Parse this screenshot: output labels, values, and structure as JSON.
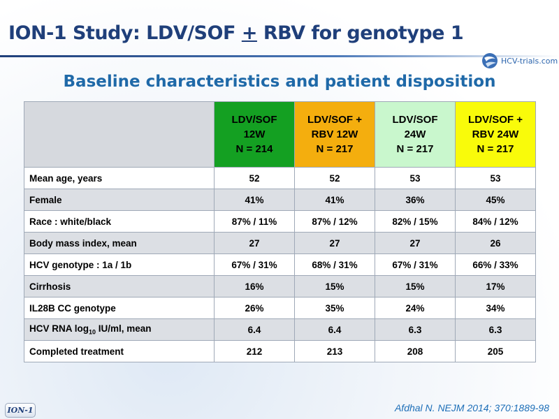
{
  "slide": {
    "title_prefix": "ION-1 Study: LDV/SOF ",
    "title_pm": "+",
    "title_suffix": " RBV for genotype 1",
    "subtitle": "Baseline characteristics and patient disposition",
    "logo_text": "HCV-trials.com",
    "badge": "ION-1",
    "citation": "Afdhal N. NEJM 2014; 370:1889-98"
  },
  "colors": {
    "title": "#1f3f7a",
    "subtitle": "#1f69a8",
    "arm_1": "#14a022",
    "arm_2": "#f4ae0e",
    "arm_3": "#c9f7cd",
    "arm_4": "#f9fb0a"
  },
  "table": {
    "columns": [
      {
        "line1": "LDV/SOF",
        "line2": "12W",
        "line3": "N = 214"
      },
      {
        "line1": "LDV/SOF +",
        "line2": "RBV 12W",
        "line3": "N = 217"
      },
      {
        "line1": "LDV/SOF",
        "line2": "24W",
        "line3": "N = 217"
      },
      {
        "line1": "LDV/SOF +",
        "line2": "RBV 24W",
        "line3": "N = 217"
      }
    ],
    "rows": [
      {
        "label": "Mean age, years",
        "values": [
          "52",
          "52",
          "53",
          "53"
        ]
      },
      {
        "label": "Female",
        "values": [
          "41%",
          "41%",
          "36%",
          "45%"
        ]
      },
      {
        "label": "Race : white/black",
        "values": [
          "87% / 11%",
          "87% / 12%",
          "82% / 15%",
          "84% / 12%"
        ]
      },
      {
        "label": "Body mass index, mean",
        "values": [
          "27",
          "27",
          "27",
          "26"
        ]
      },
      {
        "label": "HCV genotype : 1a / 1b",
        "values": [
          "67% / 31%",
          "68% / 31%",
          "67% / 31%",
          "66% / 33%"
        ]
      },
      {
        "label": "Cirrhosis",
        "values": [
          "16%",
          "15%",
          "15%",
          "17%"
        ]
      },
      {
        "label": "IL28B CC genotype",
        "values": [
          "26%",
          "35%",
          "24%",
          "34%"
        ]
      },
      {
        "label_pre": "HCV RNA log",
        "label_sub": "10",
        "label_post": " IU/ml, mean",
        "values": [
          "6.4",
          "6.4",
          "6.3",
          "6.3"
        ]
      },
      {
        "label": "Completed treatment",
        "values": [
          "212",
          "213",
          "208",
          "205"
        ]
      }
    ]
  }
}
